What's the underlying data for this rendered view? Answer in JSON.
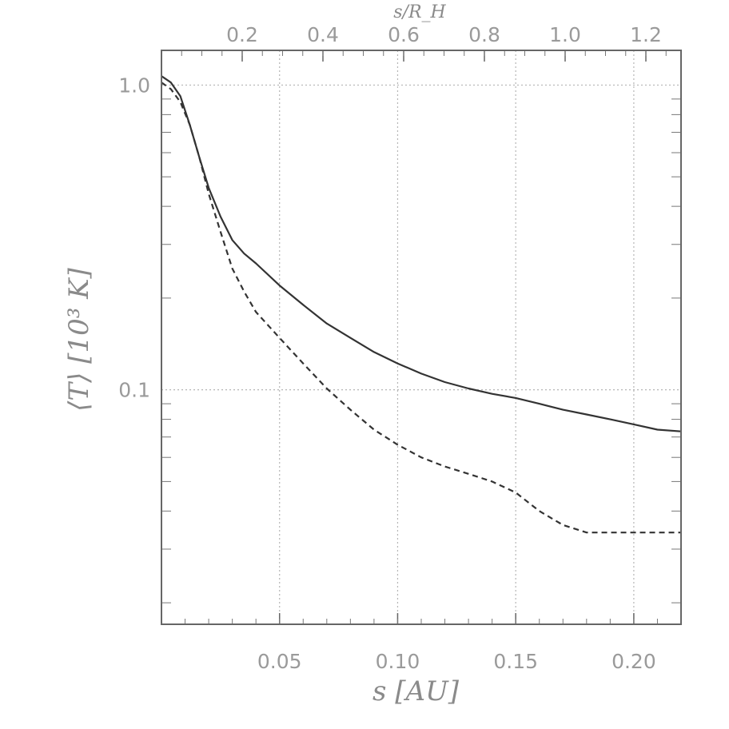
{
  "chart_data": {
    "type": "line",
    "xlabel": "s   [AU]",
    "ylabel": "⟨T⟩  [10³ K]",
    "top_xlabel": "s/R_H",
    "xlim": [
      0.0,
      0.22
    ],
    "ylim": [
      0.017,
      1.3
    ],
    "yscale": "log",
    "grid": true,
    "x_ticks": [
      {
        "value": 0.05,
        "label": "0.05"
      },
      {
        "value": 0.1,
        "label": "0.10"
      },
      {
        "value": 0.15,
        "label": "0.15"
      },
      {
        "value": 0.2,
        "label": "0.20"
      }
    ],
    "y_ticks": [
      {
        "value": 1.0,
        "label": "1.0"
      },
      {
        "value": 0.1,
        "label": "0.1"
      }
    ],
    "top_ticks": [
      {
        "value": 0.2,
        "label": "0.2"
      },
      {
        "value": 0.4,
        "label": "0.4"
      },
      {
        "value": 0.6,
        "label": "0.6"
      },
      {
        "value": 0.8,
        "label": "0.8"
      },
      {
        "value": 1.0,
        "label": "1.0"
      },
      {
        "value": 1.2,
        "label": "1.2"
      }
    ],
    "series": [
      {
        "style": "solid",
        "points": [
          [
            0.0,
            1.07
          ],
          [
            0.004,
            1.02
          ],
          [
            0.008,
            0.92
          ],
          [
            0.012,
            0.74
          ],
          [
            0.016,
            0.58
          ],
          [
            0.02,
            0.46
          ],
          [
            0.025,
            0.37
          ],
          [
            0.03,
            0.31
          ],
          [
            0.035,
            0.28
          ],
          [
            0.04,
            0.26
          ],
          [
            0.05,
            0.22
          ],
          [
            0.06,
            0.19
          ],
          [
            0.07,
            0.165
          ],
          [
            0.08,
            0.148
          ],
          [
            0.09,
            0.133
          ],
          [
            0.1,
            0.122
          ],
          [
            0.11,
            0.113
          ],
          [
            0.12,
            0.106
          ],
          [
            0.13,
            0.101
          ],
          [
            0.14,
            0.097
          ],
          [
            0.15,
            0.094
          ],
          [
            0.16,
            0.09
          ],
          [
            0.17,
            0.086
          ],
          [
            0.18,
            0.083
          ],
          [
            0.19,
            0.08
          ],
          [
            0.2,
            0.077
          ],
          [
            0.21,
            0.074
          ],
          [
            0.22,
            0.073
          ]
        ]
      },
      {
        "style": "dashed",
        "points": [
          [
            0.0,
            1.02
          ],
          [
            0.004,
            0.97
          ],
          [
            0.008,
            0.88
          ],
          [
            0.012,
            0.74
          ],
          [
            0.016,
            0.58
          ],
          [
            0.02,
            0.44
          ],
          [
            0.025,
            0.33
          ],
          [
            0.03,
            0.25
          ],
          [
            0.035,
            0.21
          ],
          [
            0.04,
            0.18
          ],
          [
            0.05,
            0.148
          ],
          [
            0.06,
            0.122
          ],
          [
            0.07,
            0.101
          ],
          [
            0.08,
            0.086
          ],
          [
            0.09,
            0.074
          ],
          [
            0.1,
            0.066
          ],
          [
            0.11,
            0.06
          ],
          [
            0.12,
            0.056
          ],
          [
            0.13,
            0.053
          ],
          [
            0.14,
            0.05
          ],
          [
            0.15,
            0.046
          ],
          [
            0.16,
            0.04
          ],
          [
            0.17,
            0.036
          ],
          [
            0.18,
            0.034
          ],
          [
            0.19,
            0.034
          ],
          [
            0.2,
            0.034
          ],
          [
            0.21,
            0.034
          ],
          [
            0.22,
            0.034
          ]
        ]
      }
    ]
  }
}
